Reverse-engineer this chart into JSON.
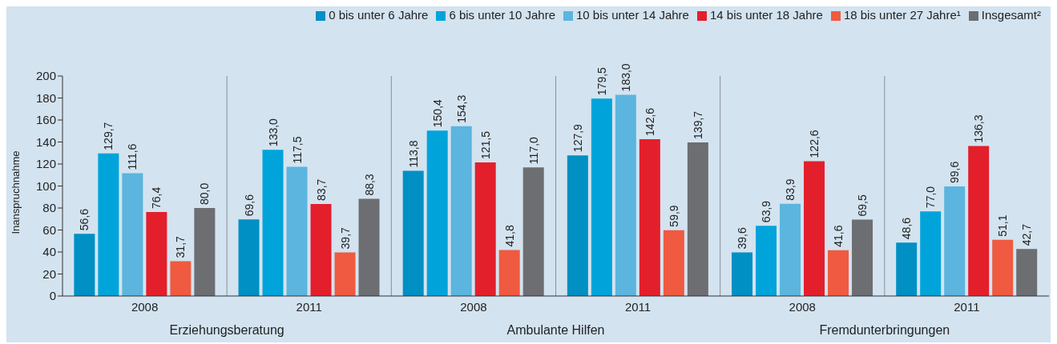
{
  "chart_data": {
    "type": "bar",
    "ylabel": "Inanspruchnahme",
    "categories": [
      "2008",
      "2011",
      "2008",
      "2011",
      "2008",
      "2011"
    ],
    "series": [
      {
        "name": "0 bis unter 6 Jahre",
        "color": "#0090c4",
        "values": [
          56.6,
          69.6,
          113.8,
          127.9,
          39.6,
          48.6
        ],
        "value_labels": [
          "56,6",
          "69,6",
          "113,8",
          "127,9",
          "39,6",
          "48,6"
        ]
      },
      {
        "name": "6 bis unter 10 Jahre",
        "color": "#00a4db",
        "values": [
          129.7,
          133.0,
          150.4,
          179.5,
          63.9,
          77.0
        ],
        "value_labels": [
          "129,7",
          "133,0",
          "150,4",
          "179,5",
          "63,9",
          "77,0"
        ]
      },
      {
        "name": "10 bis unter 14 Jahre",
        "color": "#5bb5df",
        "values": [
          111.6,
          117.5,
          154.3,
          183.0,
          83.9,
          99.6
        ],
        "value_labels": [
          "111,6",
          "117,5",
          "154,3",
          "183,0",
          "83,9",
          "99,6"
        ]
      },
      {
        "name": "14 bis unter 18 Jahre",
        "color": "#e31f2b",
        "values": [
          76.4,
          83.7,
          121.5,
          142.6,
          122.6,
          136.3
        ],
        "value_labels": [
          "76,4",
          "83,7",
          "121,5",
          "142,6",
          "122,6",
          "136,3"
        ]
      },
      {
        "name": "18 bis unter 27 Jahre¹",
        "color": "#ef5a40",
        "values": [
          31.7,
          39.7,
          41.8,
          59.9,
          41.6,
          51.1
        ],
        "value_labels": [
          "31,7",
          "39,7",
          "41,8",
          "59,9",
          "41,6",
          "51,1"
        ]
      },
      {
        "name": "Insgesamt²",
        "color": "#6d6e71",
        "values": [
          80.0,
          88.3,
          117.0,
          139.7,
          69.5,
          42.7
        ],
        "value_labels": [
          "80,0",
          "88,3",
          "117,0",
          "139,7",
          "69,5",
          "42,7"
        ]
      }
    ],
    "ylim": [
      0,
      200
    ],
    "yticks": [
      0,
      20,
      40,
      60,
      80,
      100,
      120,
      140,
      160,
      180,
      200
    ],
    "annotations": [
      "Erziehungsberatung",
      "Ambulante Hilfen",
      "Fremdunterbringungen"
    ],
    "grid": "x",
    "legend": "top right"
  }
}
